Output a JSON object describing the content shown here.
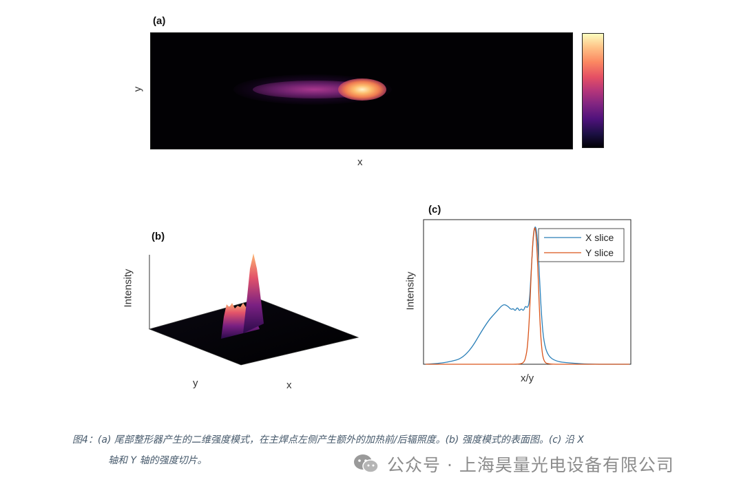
{
  "panels": {
    "a": {
      "label": "(a)",
      "xlabel": "x",
      "ylabel": "y"
    },
    "b": {
      "label": "(b)",
      "xlabel": "x",
      "ylabel": "y",
      "zlabel": "Intensity"
    },
    "c": {
      "label": "(c)",
      "xlabel": "x/y",
      "ylabel": "Intensity"
    }
  },
  "chart_data": [
    {
      "type": "heatmap",
      "title": "(a)",
      "xlabel": "x",
      "ylabel": "y",
      "colormap": "magma",
      "colorbar": true,
      "ticks": false
    },
    {
      "type": "surface",
      "title": "(b)",
      "xlabel": "x",
      "ylabel": "y",
      "zlabel": "Intensity",
      "colormap": "magma"
    },
    {
      "type": "line",
      "title": "(c)",
      "xlabel": "x/y",
      "ylabel": "Intensity",
      "legend": "top-right",
      "grid": false,
      "ticks": false,
      "series": [
        {
          "name": "X slice",
          "color": "#2a7fb8",
          "x": [
            0,
            10,
            20,
            30,
            35,
            38,
            40,
            42,
            43,
            44,
            45,
            46,
            47,
            48,
            49,
            50,
            51,
            52,
            53,
            54,
            55,
            56,
            57,
            58,
            60,
            64,
            70,
            80,
            100
          ],
          "y": [
            0.0,
            0.01,
            0.05,
            0.3,
            0.38,
            0.43,
            0.42,
            0.39,
            0.4,
            0.38,
            0.41,
            0.38,
            0.4,
            0.38,
            0.42,
            0.4,
            0.45,
            0.72,
            0.95,
            1.0,
            0.88,
            0.58,
            0.32,
            0.16,
            0.06,
            0.02,
            0.01,
            0.0,
            0.0
          ]
        },
        {
          "name": "Y slice",
          "color": "#d95319",
          "x": [
            0,
            40,
            46,
            48,
            49,
            50,
            51,
            52,
            53,
            54,
            55,
            56,
            57,
            58,
            60,
            70,
            100
          ],
          "y": [
            0.0,
            0.0,
            0.0,
            0.01,
            0.04,
            0.12,
            0.35,
            0.72,
            0.97,
            0.98,
            0.72,
            0.32,
            0.1,
            0.02,
            0.0,
            0.0,
            0.0
          ]
        }
      ],
      "xlim": [
        0,
        100
      ],
      "ylim": [
        0,
        1.02
      ]
    }
  ],
  "caption": {
    "line1": "图4：(a) 尾部整形器产生的二维强度模式，在主焊点左侧产生额外的加热前/后辐照度。(b) 强度模式的表面图。(c) 沿 X",
    "line2": "轴和 Y 轴的强度切片。"
  },
  "watermark": {
    "text": "公众号 · 上海昊量光电设备有限公司",
    "icon": "wechat-icon"
  }
}
